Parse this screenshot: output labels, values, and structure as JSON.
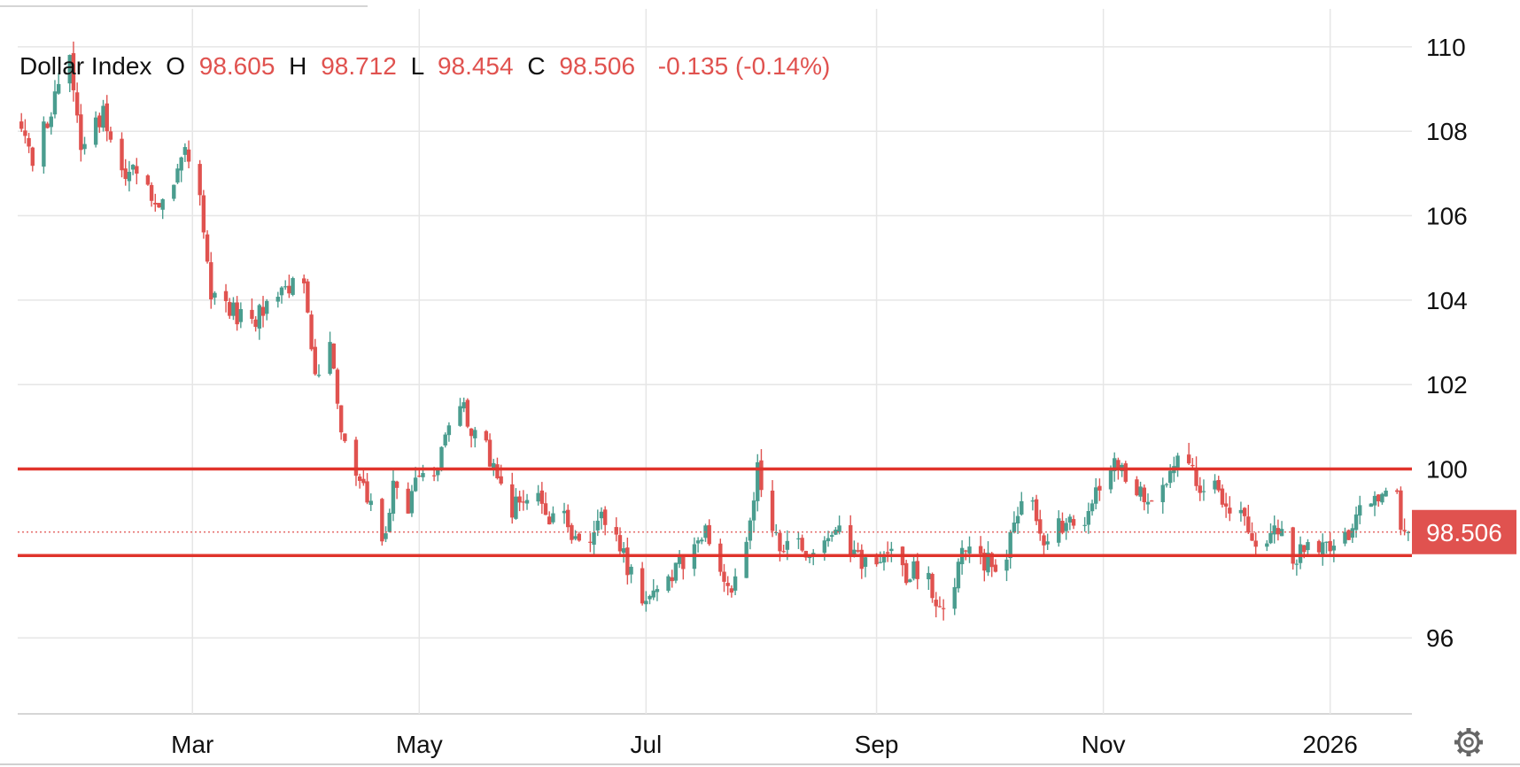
{
  "legend": {
    "symbol": "Dollar Index",
    "open_label": "O",
    "open_value": "98.605",
    "high_label": "H",
    "high_value": "98.712",
    "low_label": "L",
    "low_value": "98.454",
    "close_label": "C",
    "close_value": "98.506",
    "change": "-0.135 (-0.14%)"
  },
  "price_tag": "98.506",
  "colors": {
    "up": "#4a9d8f",
    "down": "#e0524f",
    "level_line": "#e0342c",
    "grid": "#e6e6e6",
    "text": "#111111"
  },
  "chart_data": {
    "type": "candlestick",
    "y_ticks": [
      110,
      108,
      106,
      104,
      102,
      100,
      96
    ],
    "y_tick_labels": [
      "110",
      "108",
      "106",
      "104",
      "102",
      "100",
      "96"
    ],
    "x_tick_labels": [
      "Mar",
      "May",
      "Jul",
      "Sep",
      "Nov",
      "2026"
    ],
    "x_tick_dates": [
      "2025-03-01",
      "2025-05-01",
      "2025-07-01",
      "2025-09-01",
      "2025-11-01",
      "2026-01-01"
    ],
    "x_range": [
      "2025-01-13",
      "2026-01-23"
    ],
    "ylim": [
      94.2,
      110.9
    ],
    "last_close": 98.506,
    "horizontal_levels": [
      100.0,
      97.95
    ],
    "price_path": [
      [
        "2025-01-14",
        108.2
      ],
      [
        "2025-01-17",
        107.4
      ],
      [
        "2025-01-21",
        108.3
      ],
      [
        "2025-01-24",
        109.0
      ],
      [
        "2025-01-27",
        109.7
      ],
      [
        "2025-01-30",
        107.8
      ],
      [
        "2025-02-03",
        108.1
      ],
      [
        "2025-02-05",
        108.4
      ],
      [
        "2025-02-10",
        107.0
      ],
      [
        "2025-02-14",
        107.1
      ],
      [
        "2025-02-18",
        106.6
      ],
      [
        "2025-02-21",
        106.3
      ],
      [
        "2025-02-24",
        106.9
      ],
      [
        "2025-02-27",
        107.4
      ],
      [
        "2025-03-03",
        106.5
      ],
      [
        "2025-03-06",
        104.2
      ],
      [
        "2025-03-10",
        103.9
      ],
      [
        "2025-03-13",
        103.6
      ],
      [
        "2025-03-17",
        103.4
      ],
      [
        "2025-03-20",
        103.8
      ],
      [
        "2025-03-24",
        104.2
      ],
      [
        "2025-03-27",
        104.4
      ],
      [
        "2025-03-31",
        104.2
      ],
      [
        "2025-04-03",
        102.1
      ],
      [
        "2025-04-07",
        103.1
      ],
      [
        "2025-04-10",
        100.7
      ],
      [
        "2025-04-14",
        99.8
      ],
      [
        "2025-04-17",
        99.3
      ],
      [
        "2025-04-21",
        98.2
      ],
      [
        "2025-04-24",
        99.5
      ],
      [
        "2025-04-28",
        99.1
      ],
      [
        "2025-05-01",
        100.0
      ],
      [
        "2025-05-05",
        99.7
      ],
      [
        "2025-05-08",
        100.6
      ],
      [
        "2025-05-12",
        101.6
      ],
      [
        "2025-05-15",
        100.9
      ],
      [
        "2025-05-19",
        100.6
      ],
      [
        "2025-05-22",
        99.7
      ],
      [
        "2025-05-26",
        99.0
      ],
      [
        "2025-05-29",
        99.3
      ],
      [
        "2025-06-02",
        99.4
      ],
      [
        "2025-06-05",
        98.9
      ],
      [
        "2025-06-09",
        99.0
      ],
      [
        "2025-06-12",
        98.3
      ],
      [
        "2025-06-16",
        98.2
      ],
      [
        "2025-06-19",
        98.8
      ],
      [
        "2025-06-23",
        98.6
      ],
      [
        "2025-06-26",
        97.6
      ],
      [
        "2025-06-30",
        97.0
      ],
      [
        "2025-07-03",
        96.9
      ],
      [
        "2025-07-07",
        97.4
      ],
      [
        "2025-07-10",
        97.7
      ],
      [
        "2025-07-14",
        98.1
      ],
      [
        "2025-07-17",
        98.6
      ],
      [
        "2025-07-21",
        97.6
      ],
      [
        "2025-07-24",
        97.2
      ],
      [
        "2025-07-28",
        98.3
      ],
      [
        "2025-07-31",
        100.0
      ],
      [
        "2025-08-04",
        98.7
      ],
      [
        "2025-08-07",
        98.1
      ],
      [
        "2025-08-11",
        98.4
      ],
      [
        "2025-08-14",
        97.8
      ],
      [
        "2025-08-18",
        98.2
      ],
      [
        "2025-08-21",
        98.6
      ],
      [
        "2025-08-25",
        97.9
      ],
      [
        "2025-08-28",
        97.8
      ],
      [
        "2025-09-01",
        97.7
      ],
      [
        "2025-09-04",
        98.2
      ],
      [
        "2025-09-08",
        97.5
      ],
      [
        "2025-09-11",
        97.6
      ],
      [
        "2025-09-15",
        97.3
      ],
      [
        "2025-09-17",
        96.6
      ],
      [
        "2025-09-22",
        97.4
      ],
      [
        "2025-09-25",
        98.2
      ],
      [
        "2025-09-29",
        97.9
      ],
      [
        "2025-10-02",
        97.7
      ],
      [
        "2025-10-06",
        98.1
      ],
      [
        "2025-10-09",
        99.0
      ],
      [
        "2025-10-13",
        99.1
      ],
      [
        "2025-10-16",
        98.4
      ],
      [
        "2025-10-20",
        98.6
      ],
      [
        "2025-10-23",
        98.9
      ],
      [
        "2025-10-27",
        98.8
      ],
      [
        "2025-10-30",
        99.5
      ],
      [
        "2025-11-03",
        100.1
      ],
      [
        "2025-11-06",
        99.9
      ],
      [
        "2025-11-10",
        99.6
      ],
      [
        "2025-11-13",
        99.2
      ],
      [
        "2025-11-17",
        99.5
      ],
      [
        "2025-11-20",
        100.2
      ],
      [
        "2025-11-24",
        100.1
      ],
      [
        "2025-11-27",
        99.6
      ],
      [
        "2025-12-01",
        99.5
      ],
      [
        "2025-12-04",
        98.9
      ],
      [
        "2025-12-08",
        99.1
      ],
      [
        "2025-12-11",
        98.4
      ],
      [
        "2025-12-15",
        98.3
      ],
      [
        "2025-12-18",
        98.5
      ],
      [
        "2025-12-22",
        98.0
      ],
      [
        "2025-12-25",
        98.0
      ],
      [
        "2026-01-01",
        98.2
      ],
      [
        "2026-01-05",
        98.4
      ],
      [
        "2026-01-08",
        98.9
      ],
      [
        "2026-01-12",
        99.1
      ],
      [
        "2026-01-15",
        99.3
      ],
      [
        "2026-01-19",
        99.4
      ],
      [
        "2026-01-20",
        98.6
      ],
      [
        "2026-01-22",
        98.51
      ]
    ]
  }
}
